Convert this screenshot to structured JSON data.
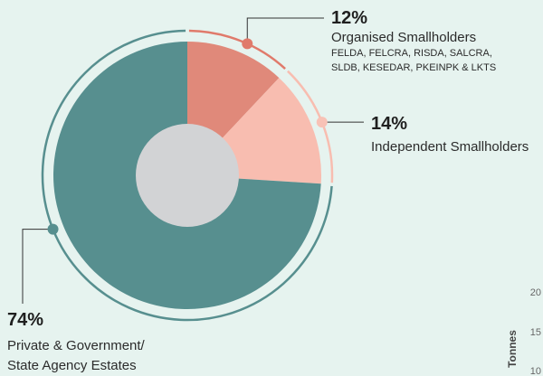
{
  "colors": {
    "background": "#e6f3ef",
    "organised": "#e0897a",
    "independent": "#f8bdb0",
    "estates": "#578f8f",
    "center": "#d2d3d5",
    "dot_organised": "#e07a6b",
    "dot_independent": "#f8c2b6",
    "dot_estates": "#578f8f"
  },
  "chart_data": {
    "type": "pie",
    "slices": [
      {
        "key": "organised",
        "percent_label": "12%",
        "value": 12,
        "name": "Organised Smallholders",
        "detail_lines": [
          "FELDA, FELCRA, RISDA, SALCRA,",
          "SLDB, KESEDAR, PKEINPK & LKTS"
        ]
      },
      {
        "key": "independent",
        "percent_label": "14%",
        "value": 14,
        "name": "Independent Smallholders",
        "detail_lines": []
      },
      {
        "key": "estates",
        "percent_label": "74%",
        "value": 74,
        "name_lines": [
          "Private & Government/",
          "State Agency Estates"
        ]
      }
    ]
  },
  "partial_axis": {
    "title": "Tonnes",
    "ticks": [
      "20",
      "15",
      "10"
    ]
  }
}
